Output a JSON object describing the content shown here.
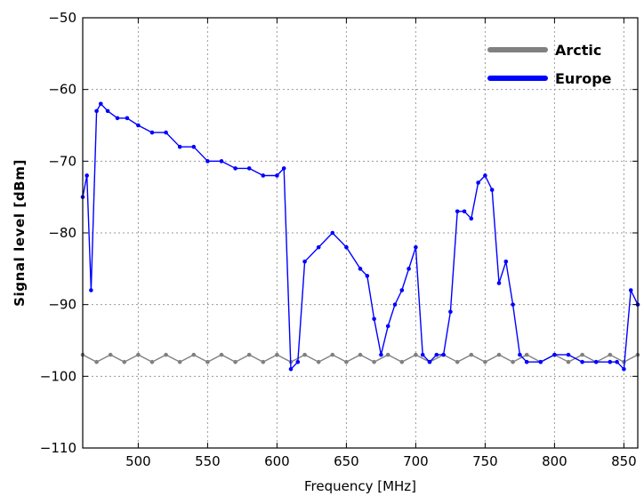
{
  "chart_data": {
    "type": "line",
    "title": "",
    "xlabel": "Frequency [MHz]",
    "ylabel": "Signal level [dBm]",
    "xlim": [
      460,
      860
    ],
    "ylim": [
      -110,
      -50
    ],
    "xticks": [
      500,
      550,
      600,
      650,
      700,
      750,
      800,
      850
    ],
    "yticks": [
      -110,
      -100,
      -90,
      -80,
      -70,
      -60,
      -50
    ],
    "grid": true,
    "legend_position": "top-right",
    "series": [
      {
        "name": "Arctic",
        "color": "#808080",
        "marker": "dot",
        "x": [
          460,
          470,
          480,
          490,
          500,
          510,
          520,
          530,
          540,
          550,
          560,
          570,
          580,
          590,
          600,
          610,
          620,
          630,
          640,
          650,
          660,
          670,
          680,
          690,
          700,
          710,
          720,
          730,
          740,
          750,
          760,
          770,
          780,
          790,
          800,
          810,
          820,
          830,
          840,
          850,
          860
        ],
        "y": [
          -97,
          -98,
          -97,
          -98,
          -97,
          -98,
          -97,
          -98,
          -97,
          -98,
          -97,
          -98,
          -97,
          -98,
          -97,
          -98,
          -97,
          -98,
          -97,
          -98,
          -97,
          -98,
          -97,
          -98,
          -97,
          -98,
          -97,
          -98,
          -97,
          -98,
          -97,
          -98,
          -97,
          -98,
          -97,
          -98,
          -97,
          -98,
          -97,
          -98,
          -97
        ]
      },
      {
        "name": "Europe",
        "color": "#0000ff",
        "marker": "dot",
        "x": [
          460,
          463,
          466,
          470,
          473,
          478,
          485,
          492,
          500,
          510,
          520,
          530,
          540,
          550,
          560,
          570,
          580,
          590,
          600,
          605,
          610,
          615,
          620,
          630,
          640,
          650,
          660,
          665,
          670,
          675,
          680,
          685,
          690,
          695,
          700,
          705,
          710,
          715,
          720,
          725,
          730,
          735,
          740,
          745,
          750,
          755,
          760,
          765,
          770,
          775,
          780,
          790,
          800,
          810,
          820,
          830,
          840,
          845,
          850,
          855,
          860
        ],
        "y": [
          -75,
          -72,
          -88,
          -63,
          -62,
          -63,
          -64,
          -64,
          -65,
          -66,
          -66,
          -68,
          -68,
          -70,
          -70,
          -71,
          -71,
          -72,
          -72,
          -71,
          -99,
          -98,
          -84,
          -82,
          -80,
          -82,
          -85,
          -86,
          -92,
          -97,
          -93,
          -90,
          -88,
          -85,
          -82,
          -97,
          -98,
          -97,
          -97,
          -91,
          -77,
          -77,
          -78,
          -73,
          -72,
          -74,
          -87,
          -84,
          -90,
          -97,
          -98,
          -98,
          -97,
          -97,
          -98,
          -98,
          -98,
          -98,
          -99,
          -88,
          -90
        ]
      }
    ]
  }
}
